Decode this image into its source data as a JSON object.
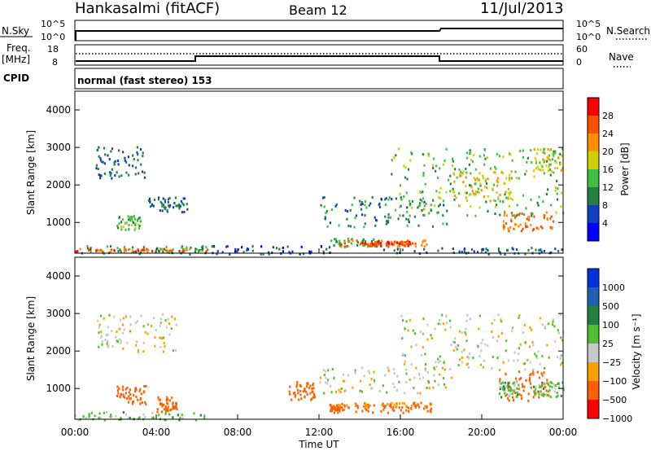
{
  "header": {
    "station": "Hankasalmi (fitACF)",
    "beam": "Beam 12",
    "date": "11/Jul/2013"
  },
  "panels": {
    "noise": {
      "left_label": "N.Sky",
      "right_label": "N.Search",
      "left_ticks": [
        "10^5",
        "10^0"
      ],
      "right_ticks": [
        "10^5",
        "10^0"
      ]
    },
    "freq": {
      "left_label_top": "Freq.",
      "left_label_unit": "[MHz]",
      "left_ticks": [
        "18",
        "8"
      ],
      "right_ticks": [
        "60",
        "0"
      ],
      "right_label": "Nave"
    },
    "cpid": {
      "label": "CPID",
      "text": "normal (fast stereo) 153"
    }
  },
  "power_colorbar": {
    "label": "Power [dB]",
    "ticks": [
      "28",
      "24",
      "20",
      "16",
      "12",
      "8",
      "4"
    ],
    "colors": [
      "#ff0000",
      "#ff5000",
      "#ff9000",
      "#d0d000",
      "#40c040",
      "#208040",
      "#1040c0",
      "#0000ff"
    ]
  },
  "velocity_colorbar": {
    "label": "Velocity [m s⁻¹]",
    "ticks": [
      "1000",
      "500",
      "100",
      "25",
      "−25",
      "−100",
      "−500",
      "−1000"
    ],
    "colors": [
      "#0033dd",
      "#2060b0",
      "#208040",
      "#50c030",
      "#c8c8c8",
      "#ffa000",
      "#ff6000",
      "#ff0000"
    ]
  },
  "colors": {
    "power_low": "#1040c0",
    "power_mid": "#3cb050",
    "power_high": "#ff5000",
    "power_peak": "#ff0000",
    "vel_grey": "#c8c8c8",
    "vel_orange": "#ff9000",
    "vel_green": "#50c030"
  },
  "chart_data": [
    {
      "type": "heatmap",
      "title": "",
      "xlabel": "Time UT",
      "ylabel": "Slant Range [km]",
      "xlim": [
        "00:00",
        "24:00"
      ],
      "ylim": [
        180,
        4500
      ],
      "x_ticks": [
        "00:00",
        "04:00",
        "08:00",
        "12:00",
        "16:00",
        "20:00",
        "00:00"
      ],
      "y_ticks": [
        "1000",
        "2000",
        "3000",
        "4000"
      ],
      "quantity": "Power [dB]",
      "echo_regions": [
        {
          "t": [
            0.0,
            6.5
          ],
          "range": [
            180,
            400
          ],
          "level": 12
        },
        {
          "t": [
            0.0,
            6.5
          ],
          "range": [
            250,
            330
          ],
          "level": 26
        },
        {
          "t": [
            1.0,
            3.5
          ],
          "range": [
            2200,
            3050
          ],
          "level": 8
        },
        {
          "t": [
            2.0,
            3.2
          ],
          "range": [
            800,
            1200
          ],
          "level": 14
        },
        {
          "t": [
            3.5,
            5.5
          ],
          "range": [
            1300,
            1700
          ],
          "level": 8
        },
        {
          "t": [
            6.0,
            12.5
          ],
          "range": [
            180,
            400
          ],
          "level": 6
        },
        {
          "t": [
            12.5,
            15.0
          ],
          "range": [
            380,
            600
          ],
          "level": 12
        },
        {
          "t": [
            13.0,
            17.5
          ],
          "range": [
            380,
            550
          ],
          "level": 24
        },
        {
          "t": [
            14.0,
            16.5
          ],
          "range": [
            400,
            520
          ],
          "level": 28
        },
        {
          "t": [
            12.0,
            18.5
          ],
          "range": [
            900,
            1700
          ],
          "level": 10
        },
        {
          "t": [
            15.5,
            24.0
          ],
          "range": [
            1200,
            3000
          ],
          "level": 14
        },
        {
          "t": [
            18.5,
            21.5
          ],
          "range": [
            1600,
            2400
          ],
          "level": 20
        },
        {
          "t": [
            21.0,
            23.5
          ],
          "range": [
            800,
            1300
          ],
          "level": 24
        },
        {
          "t": [
            22.5,
            24.0
          ],
          "range": [
            2400,
            3000
          ],
          "level": 18
        },
        {
          "t": [
            15.0,
            24.0
          ],
          "range": [
            180,
            350
          ],
          "level": 8
        }
      ]
    },
    {
      "type": "heatmap",
      "title": "",
      "xlabel": "Time UT",
      "ylabel": "Slant Range [km]",
      "xlim": [
        "00:00",
        "24:00"
      ],
      "ylim": [
        180,
        4500
      ],
      "x_ticks": [
        "00:00",
        "04:00",
        "08:00",
        "12:00",
        "16:00",
        "20:00",
        "00:00"
      ],
      "y_ticks": [
        "1000",
        "2000",
        "3000",
        "4000"
      ],
      "quantity": "Velocity [m s⁻¹]",
      "echo_regions": [
        {
          "t": [
            0.0,
            7.0
          ],
          "range": [
            180,
            400
          ],
          "velocity": 60
        },
        {
          "t": [
            1.0,
            5.0
          ],
          "range": [
            2000,
            3050
          ],
          "velocity": 0
        },
        {
          "t": [
            2.0,
            3.5
          ],
          "range": [
            600,
            1100
          ],
          "velocity": -300
        },
        {
          "t": [
            4.0,
            5.0
          ],
          "range": [
            400,
            800
          ],
          "velocity": -200
        },
        {
          "t": [
            10.5,
            11.8
          ],
          "range": [
            700,
            1200
          ],
          "velocity": -250
        },
        {
          "t": [
            12.5,
            13.0
          ],
          "range": [
            380,
            600
          ],
          "velocity": -150
        },
        {
          "t": [
            13.0,
            17.5
          ],
          "range": [
            380,
            580
          ],
          "velocity": -200
        },
        {
          "t": [
            13.0,
            17.5
          ],
          "range": [
            550,
            650
          ],
          "velocity": -100
        },
        {
          "t": [
            12.0,
            18.5
          ],
          "range": [
            900,
            1600
          ],
          "velocity": 0
        },
        {
          "t": [
            16.0,
            24.0
          ],
          "range": [
            1500,
            3000
          ],
          "velocity": 0
        },
        {
          "t": [
            20.8,
            23.2
          ],
          "range": [
            700,
            1500
          ],
          "velocity": -300
        },
        {
          "t": [
            20.8,
            21.8
          ],
          "range": [
            800,
            1200
          ],
          "velocity": 60
        },
        {
          "t": [
            22.5,
            24.0
          ],
          "range": [
            800,
            1200
          ],
          "velocity": 60
        }
      ]
    },
    {
      "type": "line",
      "title": "",
      "xlabel": "Time UT",
      "ylabel": "N.Sky",
      "series": [
        {
          "name": "N.Sky",
          "x": [
            0,
            6,
            12,
            18,
            18.1,
            24
          ],
          "y": [
            2000,
            2000,
            2000,
            2000,
            8000,
            10000
          ]
        }
      ]
    },
    {
      "type": "line",
      "title": "",
      "xlabel": "Time UT",
      "ylabel": "Freq. [MHz]",
      "series": [
        {
          "name": "Freq.",
          "x": [
            0,
            6,
            6,
            18,
            18,
            24
          ],
          "y": [
            10,
            10,
            12.5,
            12.5,
            10,
            10
          ]
        },
        {
          "name": "Nave",
          "x": [
            0,
            24
          ],
          "y": [
            30,
            30
          ]
        }
      ]
    }
  ]
}
